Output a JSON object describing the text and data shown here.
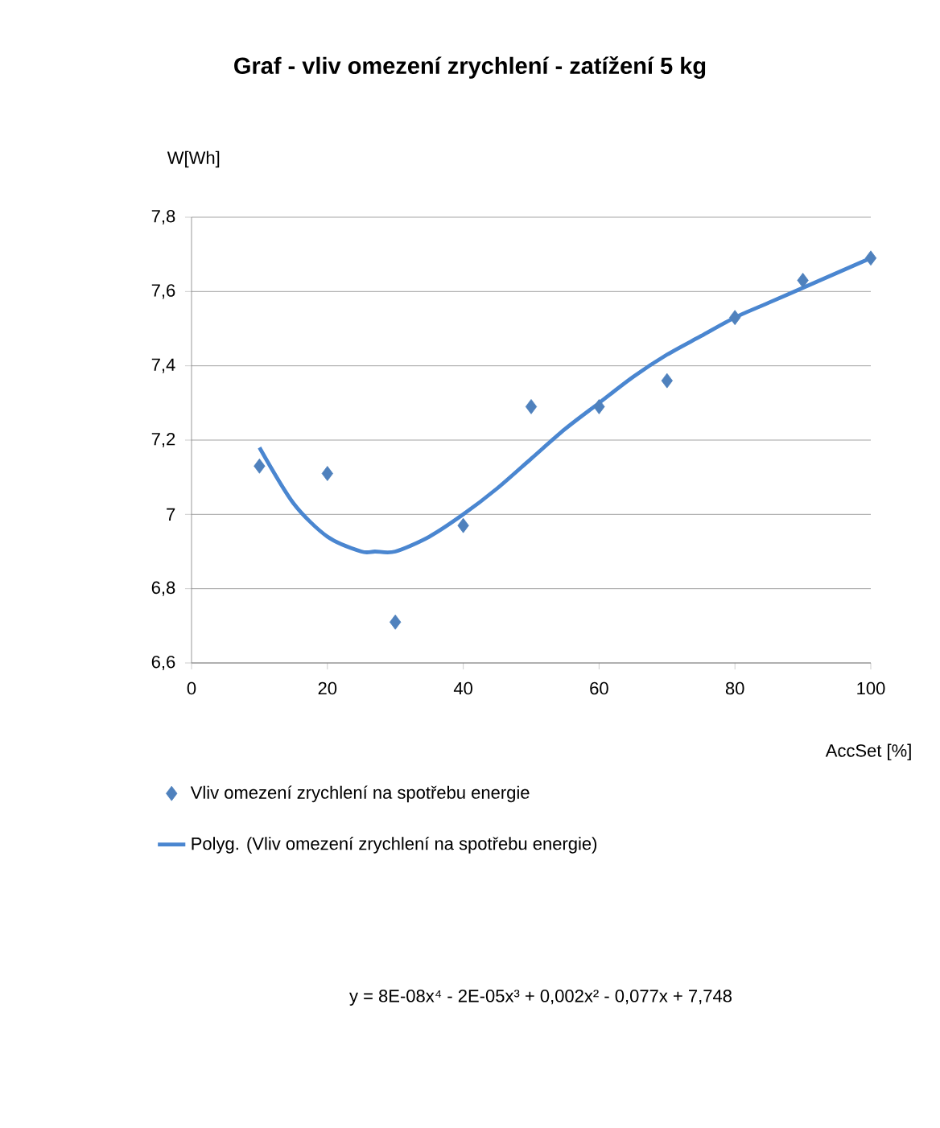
{
  "chart_data": {
    "type": "scatter",
    "title": "Graf - vliv omezení zrychlení  - zatížení 5 kg",
    "xlabel": "AccSet [%]",
    "ylabel": "W[Wh]",
    "x": [
      10,
      20,
      30,
      40,
      50,
      60,
      70,
      80,
      90,
      100
    ],
    "series": [
      {
        "name": "Vliv omezení zrychlení na spotřebu energie",
        "marker": "diamond",
        "color": "#4f81bd",
        "values": [
          7.13,
          7.11,
          6.71,
          6.97,
          7.29,
          7.29,
          7.36,
          7.53,
          7.63,
          7.69
        ]
      },
      {
        "name": "Polyg. (Vliv omezení zrychlení na spotřebu energie)",
        "type": "line",
        "marker": "none",
        "color": "#4a86d0",
        "x": [
          10,
          15,
          20,
          25,
          27,
          30,
          35,
          40,
          45,
          50,
          55,
          60,
          65,
          70,
          75,
          80,
          85,
          90,
          95,
          100
        ],
        "values": [
          7.18,
          7.03,
          6.94,
          6.9,
          6.9,
          6.9,
          6.94,
          7.0,
          7.07,
          7.15,
          7.23,
          7.3,
          7.37,
          7.43,
          7.48,
          7.53,
          7.57,
          7.61,
          7.65,
          7.69
        ]
      }
    ],
    "xlim": [
      0,
      100
    ],
    "xticks": [
      0,
      20,
      40,
      60,
      80,
      100
    ],
    "ylim": [
      6.6,
      7.8
    ],
    "yticks": [
      {
        "value": 6.6,
        "label": "6,6"
      },
      {
        "value": 6.8,
        "label": "6,8"
      },
      {
        "value": 7,
        "label": "7"
      },
      {
        "value": 7.2,
        "label": "7,2"
      },
      {
        "value": 7.4,
        "label": "7,4"
      },
      {
        "value": 7.6,
        "label": "7,6"
      },
      {
        "value": 7.8,
        "label": "7,8"
      }
    ],
    "grid": "y",
    "legend": "bottom",
    "annotations": [
      "y = 8E-08x⁴ - 2E-05x³ + 0,002x² - 0,077x + 7,748"
    ]
  }
}
